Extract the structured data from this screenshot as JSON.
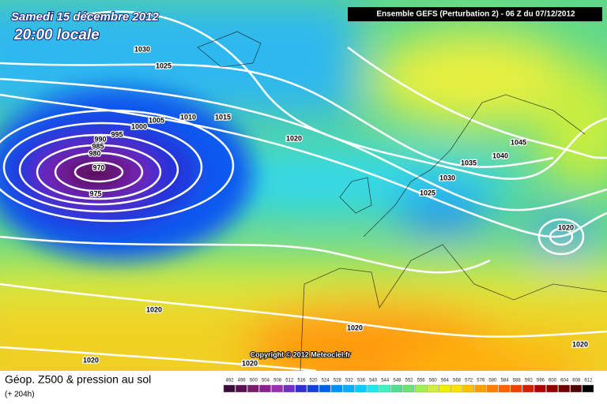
{
  "header": {
    "date": "Samedi 15 décembre 2012",
    "time": "20:00 locale",
    "run": "Ensemble GEFS (Perturbation 2)  -  06 Z du 07/12/2012"
  },
  "copyright": "Copyright © 2012 Meteociel.fr",
  "isobar_labels": [
    "1030",
    "1025",
    "1005",
    "1010",
    "1015",
    "1000",
    "995",
    "990",
    "985",
    "980",
    "970",
    "975",
    "1020",
    "1035",
    "1040",
    "1045",
    "1030",
    "1025",
    "1020",
    "1020",
    "1020",
    "1020",
    "1020",
    "1020"
  ],
  "legend": {
    "title": "Géop. Z500 & pression au sol",
    "lead": "(+ 204h)",
    "levels": [
      492,
      496,
      500,
      504,
      508,
      512,
      516,
      520,
      524,
      528,
      532,
      536,
      540,
      544,
      548,
      552,
      556,
      560,
      564,
      568,
      572,
      576,
      580,
      584,
      588,
      592,
      596,
      600,
      604,
      608,
      612
    ],
    "colors": [
      "#3a0a3a",
      "#5a1050",
      "#7a1a6a",
      "#8a2090",
      "#9a30b0",
      "#7030c0",
      "#3030d0",
      "#1040e0",
      "#0060f0",
      "#0090ff",
      "#00b0ff",
      "#00d0ff",
      "#20e8f0",
      "#40f0c0",
      "#50e090",
      "#70e070",
      "#a0f050",
      "#d0f040",
      "#f0f000",
      "#ffe000",
      "#ffc000",
      "#ffa000",
      "#ff8000",
      "#ff6000",
      "#f04000",
      "#d02000",
      "#b00000",
      "#900000",
      "#700000",
      "#500000",
      "#000000"
    ]
  }
}
